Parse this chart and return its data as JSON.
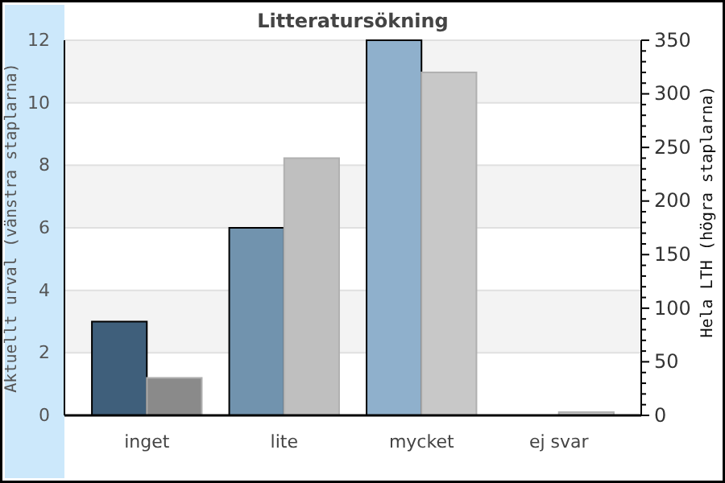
{
  "chart_data": {
    "type": "bar",
    "title": "Litteratursökning",
    "categories": [
      "inget",
      "lite",
      "mycket",
      "ej svar"
    ],
    "ylabel": "Aktuellt urval (vänstra staplarna)",
    "y2label": "Hela LTH (högra staplarna)",
    "ylim": [
      0,
      12
    ],
    "yticks": [
      0,
      2,
      4,
      6,
      8,
      10,
      12
    ],
    "y2lim": [
      0,
      350
    ],
    "y2ticks": [
      0,
      {
        "value": 10,
        "label": null
      },
      {
        "value": 20,
        "label": null
      },
      {
        "value": 30,
        "label": null
      },
      {
        "value": 40,
        "label": null
      },
      50,
      {
        "value": 60,
        "label": null
      },
      {
        "value": 70,
        "label": null
      },
      {
        "value": 80,
        "label": null
      },
      {
        "value": 90,
        "label": null
      },
      100,
      {
        "value": 110,
        "label": null
      },
      {
        "value": 120,
        "label": null
      },
      {
        "value": 130,
        "label": null
      },
      {
        "value": 140,
        "label": null
      },
      150,
      {
        "value": 160,
        "label": null
      },
      {
        "value": 170,
        "label": null
      },
      {
        "value": 180,
        "label": null
      },
      {
        "value": 190,
        "label": null
      },
      200,
      {
        "value": 210,
        "label": null
      },
      {
        "value": 220,
        "label": null
      },
      {
        "value": 230,
        "label": null
      },
      {
        "value": 240,
        "label": null
      },
      250,
      {
        "value": 260,
        "label": null
      },
      {
        "value": 270,
        "label": null
      },
      {
        "value": 280,
        "label": null
      },
      {
        "value": 290,
        "label": null
      },
      300,
      {
        "value": 310,
        "label": null
      },
      {
        "value": 320,
        "label": null
      },
      {
        "value": 330,
        "label": null
      },
      {
        "value": 340,
        "label": null
      },
      350
    ],
    "grid": "y",
    "series": [
      {
        "colors": [
          "#3f5f7b",
          "#7193ae",
          "#8fb0cc",
          "#8fb0cc"
        ],
        "values": [
          3,
          6,
          12,
          0
        ]
      },
      {
        "axis": "y2",
        "colors": [
          "#8a8a8a",
          "#bfbfbf",
          "#c8c8c8",
          "#c8c8c8"
        ],
        "values": [
          35,
          240,
          320,
          3
        ]
      }
    ]
  }
}
